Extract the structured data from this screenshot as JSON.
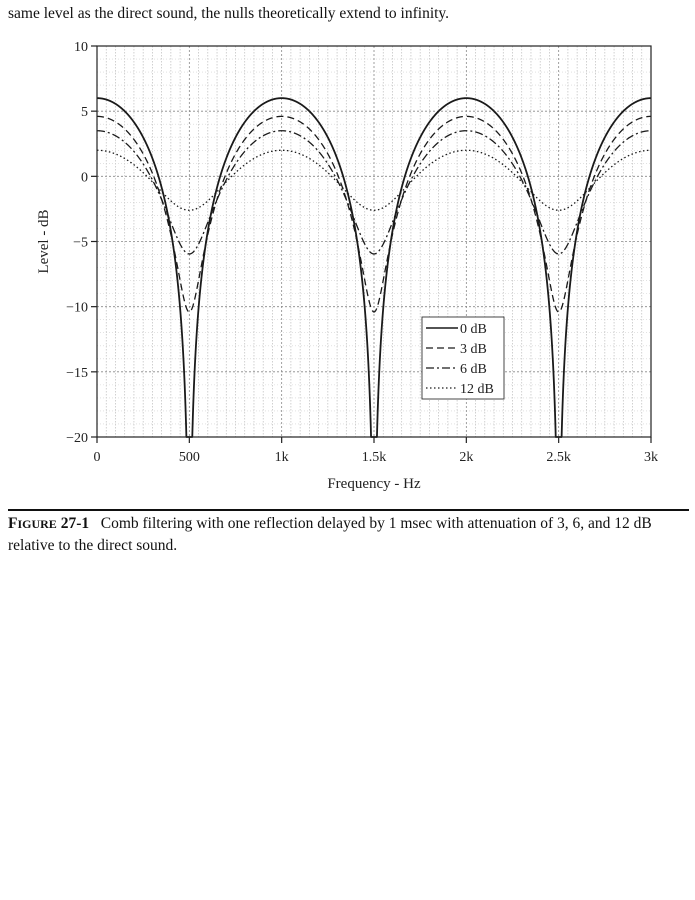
{
  "page": {
    "lead_text": "same level as the direct sound, the nulls theoretically extend to infinity.",
    "caption_fig_first": "F",
    "caption_fig_rest": "IGURE",
    "caption_fig_number": "27-1",
    "caption_text": "Comb filtering with one reflection delayed by 1 msec with attenuation of 3, 6, and 12 dB relative to the direct sound."
  },
  "chart_data": {
    "type": "line",
    "xlabel": "Frequency - Hz",
    "ylabel": "Level - dB",
    "xlim": [
      0,
      3000
    ],
    "ylim": [
      -20,
      10
    ],
    "x_ticks": [
      {
        "value": 0,
        "label": "0"
      },
      {
        "value": 500,
        "label": "500"
      },
      {
        "value": 1000,
        "label": "1k"
      },
      {
        "value": 1500,
        "label": "1.5k"
      },
      {
        "value": 2000,
        "label": "2k"
      },
      {
        "value": 2500,
        "label": "2.5k"
      },
      {
        "value": 3000,
        "label": "3k"
      }
    ],
    "y_ticks": [
      {
        "value": 10,
        "label": "10"
      },
      {
        "value": 5,
        "label": "5"
      },
      {
        "value": 0,
        "label": "0"
      },
      {
        "value": -5,
        "label": "−5"
      },
      {
        "value": -10,
        "label": "−10"
      },
      {
        "value": -15,
        "label": "−15"
      },
      {
        "value": -20,
        "label": "−20"
      }
    ],
    "grid": true,
    "legend_position": "lower-right",
    "delay_ms": 1,
    "series": [
      {
        "name": "0 dB",
        "dash": "solid",
        "peak_db": 6.0,
        "null_db": -20,
        "peak_freqs": [
          0,
          1000,
          2000,
          3000
        ],
        "null_freqs": [
          500,
          1500,
          2500
        ]
      },
      {
        "name": "3 dB",
        "dash": "dashed",
        "peak_db": 4.6,
        "null_db": -10.7,
        "peak_freqs": [
          0,
          1000,
          2000,
          3000
        ],
        "null_freqs": [
          500,
          1500,
          2500
        ]
      },
      {
        "name": "6 dB",
        "dash": "dash-dot",
        "peak_db": 3.5,
        "null_db": -6.0,
        "peak_freqs": [
          0,
          1000,
          2000,
          3000
        ],
        "null_freqs": [
          500,
          1500,
          2500
        ]
      },
      {
        "name": "12 dB",
        "dash": "dotted",
        "peak_db": 2.0,
        "null_db": -2.5,
        "peak_freqs": [
          0,
          1000,
          2000,
          3000
        ],
        "null_freqs": [
          500,
          1500,
          2500
        ]
      }
    ]
  }
}
